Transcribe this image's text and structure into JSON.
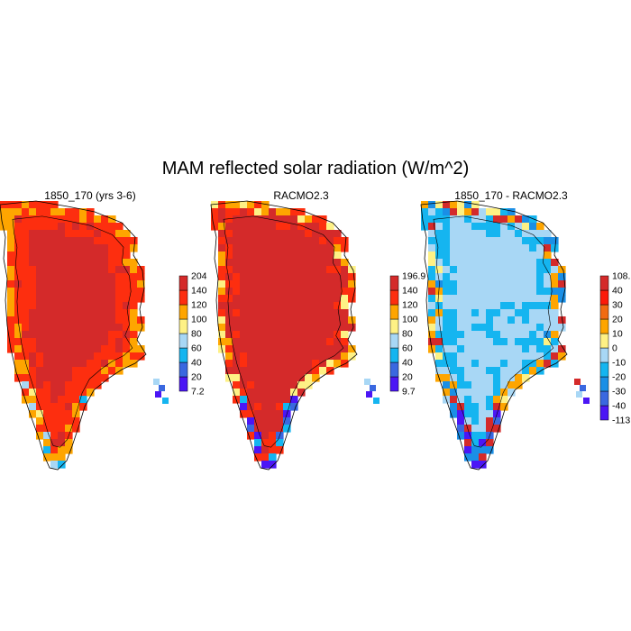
{
  "figure": {
    "title": "MAM reflected solar radiation (W/m^2)"
  },
  "panels": [
    {
      "id": "model",
      "title": "1850_170 (yrs 3-6)",
      "colors": [
        "#4b16f5",
        "#3a68e0",
        "#15b5f0",
        "#a8d7f5",
        "#fef185",
        "#fea500",
        "#fd2e0f",
        "#d42a2a"
      ],
      "labels": [
        "7.2",
        "20",
        "40",
        "60",
        "80",
        "100",
        "120",
        "140",
        "204"
      ],
      "scheme": "abs1"
    },
    {
      "id": "racmo",
      "title": "RACMO2.3",
      "colors": [
        "#4b16f5",
        "#3a68e0",
        "#15b5f0",
        "#a8d7f5",
        "#fef185",
        "#fea500",
        "#fd2e0f",
        "#d42a2a"
      ],
      "labels": [
        "9.7",
        "20",
        "40",
        "60",
        "80",
        "100",
        "120",
        "140",
        "196.9"
      ],
      "scheme": "abs2"
    },
    {
      "id": "diff",
      "title": "1850_170 - RACMO2.3",
      "colors": [
        "#4b16f5",
        "#3a68e0",
        "#1a8fe6",
        "#15b5f0",
        "#a8d7f5",
        "#fef185",
        "#fea500",
        "#f26b12",
        "#fd1a0a",
        "#d42a2a"
      ],
      "labels": [
        "-113.",
        "-40",
        "-30",
        "-20",
        "-10",
        "0",
        "10",
        "20",
        "30",
        "40",
        "108."
      ],
      "scheme": "diff"
    }
  ]
}
